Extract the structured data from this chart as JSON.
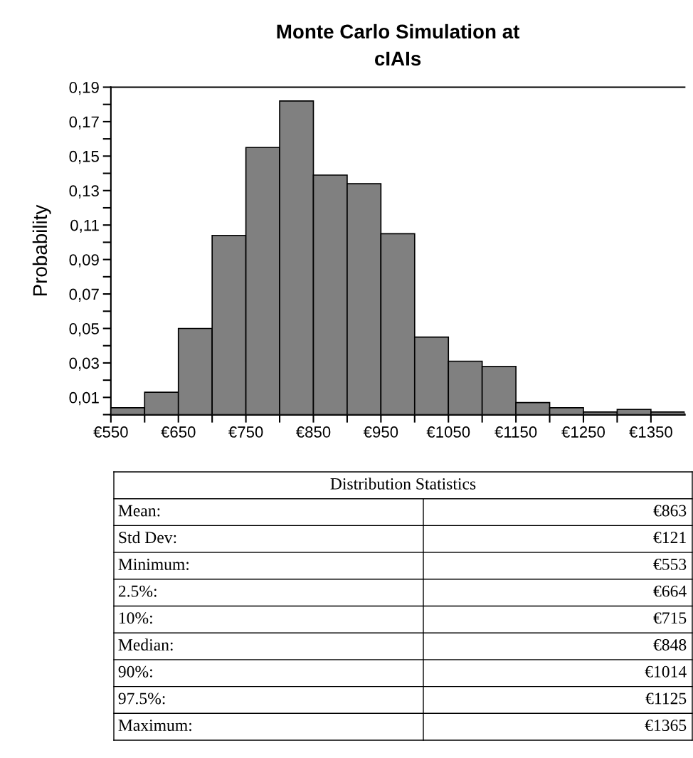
{
  "chart_data": {
    "type": "histogram",
    "title": "Monte Carlo Simulation at\ncIAIs",
    "ylabel": "Probability",
    "bins": [
      550,
      600,
      650,
      700,
      750,
      800,
      850,
      900,
      950,
      1000,
      1050,
      1100,
      1150,
      1200,
      1250,
      1300,
      1350,
      1400
    ],
    "values": [
      0.004,
      0.013,
      0.05,
      0.104,
      0.155,
      0.182,
      0.139,
      0.134,
      0.105,
      0.045,
      0.031,
      0.028,
      0.007,
      0.004,
      0.0015,
      0.003,
      0.0015
    ],
    "color": "#808080",
    "xlim": [
      550,
      1400
    ],
    "xticks": [
      {
        "value": 550,
        "label": "€550"
      },
      {
        "value": 600,
        "label": null
      },
      {
        "value": 650,
        "label": "€650"
      },
      {
        "value": 700,
        "label": null
      },
      {
        "value": 750,
        "label": "€750"
      },
      {
        "value": 800,
        "label": null
      },
      {
        "value": 850,
        "label": "€850"
      },
      {
        "value": 900,
        "label": null
      },
      {
        "value": 950,
        "label": "€950"
      },
      {
        "value": 1000,
        "label": null
      },
      {
        "value": 1050,
        "label": "€1050"
      },
      {
        "value": 1100,
        "label": null
      },
      {
        "value": 1150,
        "label": "€1150"
      },
      {
        "value": 1200,
        "label": null
      },
      {
        "value": 1250,
        "label": "€1250"
      },
      {
        "value": 1300,
        "label": null
      },
      {
        "value": 1350,
        "label": "€1350"
      }
    ],
    "ylim": [
      0,
      0.19
    ],
    "yticks": [
      {
        "value": 0,
        "label": null
      },
      {
        "value": 0.01,
        "label": "0,01"
      },
      {
        "value": 0.02,
        "label": null
      },
      {
        "value": 0.03,
        "label": "0,03"
      },
      {
        "value": 0.04,
        "label": null
      },
      {
        "value": 0.05,
        "label": "0,05"
      },
      {
        "value": 0.06,
        "label": null
      },
      {
        "value": 0.07,
        "label": "0,07"
      },
      {
        "value": 0.08,
        "label": null
      },
      {
        "value": 0.09,
        "label": "0,09"
      },
      {
        "value": 0.1,
        "label": null
      },
      {
        "value": 0.11,
        "label": "0,11"
      },
      {
        "value": 0.12,
        "label": null
      },
      {
        "value": 0.13,
        "label": "0,13"
      },
      {
        "value": 0.14,
        "label": null
      },
      {
        "value": 0.15,
        "label": "0,15"
      },
      {
        "value": 0.16,
        "label": null
      },
      {
        "value": 0.17,
        "label": "0,17"
      },
      {
        "value": 0.18,
        "label": null
      },
      {
        "value": 0.19,
        "label": "0,19"
      }
    ],
    "grid": false,
    "annotations": [
      "Distribution Statistics",
      "Mean:",
      "€863",
      "Std Dev:",
      "€121",
      "Minimum:",
      "€553",
      "2.5%:",
      "€664",
      "10%:",
      "€715",
      "Median:",
      "€848",
      "90%:",
      "€1014",
      "97.5%:",
      "€1125",
      "Maximum:",
      "€1365"
    ]
  }
}
